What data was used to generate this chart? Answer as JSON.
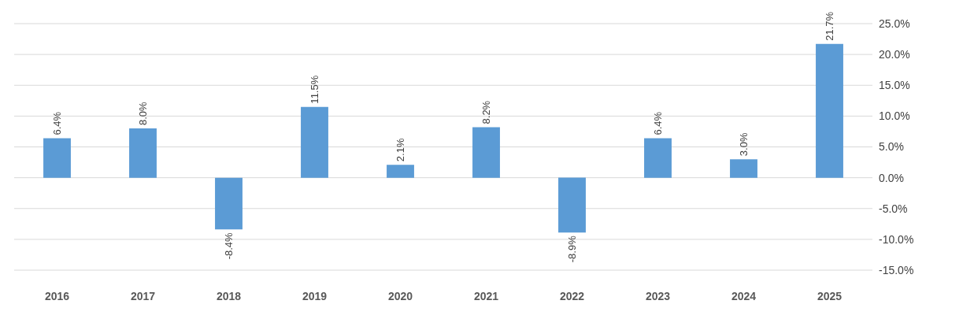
{
  "chart_data": {
    "type": "bar",
    "categories": [
      "2016",
      "2017",
      "2018",
      "2019",
      "2020",
      "2021",
      "2022",
      "2023",
      "2024",
      "2025"
    ],
    "series": [
      {
        "color": "#5b9bd5",
        "values": [
          6.4,
          8.0,
          -8.4,
          11.5,
          2.1,
          8.2,
          -8.9,
          6.4,
          3.0,
          21.7
        ],
        "value_labels": [
          "6.4%",
          "8.0%",
          "-8.4%",
          "11.5%",
          "2.1%",
          "8.2%",
          "-8.9%",
          "6.4%",
          "3.0%",
          "21.7%"
        ]
      }
    ],
    "ylim": [
      -15,
      25
    ],
    "yticks": [
      {
        "value": -15,
        "label": "-15.0%"
      },
      {
        "value": -10,
        "label": "-10.0%"
      },
      {
        "value": -5,
        "label": "-5.0%"
      },
      {
        "value": 0,
        "label": "0.0%"
      },
      {
        "value": 5,
        "label": "5.0%"
      },
      {
        "value": 10,
        "label": "10.0%"
      },
      {
        "value": 15,
        "label": "15.0%"
      },
      {
        "value": 20,
        "label": "20.0%"
      },
      {
        "value": 25,
        "label": "25.0%"
      }
    ],
    "grid": "y",
    "legend": false
  }
}
